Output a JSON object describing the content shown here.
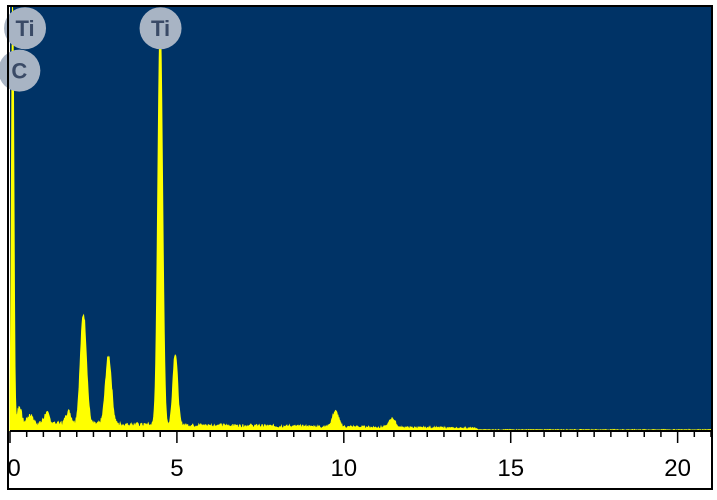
{
  "chart_data": {
    "type": "area",
    "title": "",
    "xlabel": "",
    "ylabel": "",
    "xlim": [
      0,
      21
    ],
    "ylim": [
      0,
      100
    ],
    "x_ticks": [
      "0",
      "5",
      "10",
      "15",
      "20"
    ],
    "grid": false,
    "colors": {
      "background": "#003366",
      "spectrum": "#ffff00",
      "frame": "#000000",
      "marker_fill": "#a8b4c4",
      "marker_text": "#3a4a66"
    },
    "peaks": [
      {
        "x": 0.08,
        "y": 100
      },
      {
        "x": 0.28,
        "y": 4
      },
      {
        "x": 0.6,
        "y": 2
      },
      {
        "x": 1.1,
        "y": 2.5
      },
      {
        "x": 1.75,
        "y": 3
      },
      {
        "x": 2.2,
        "y": 26
      },
      {
        "x": 2.95,
        "y": 16
      },
      {
        "x": 4.5,
        "y": 95
      },
      {
        "x": 4.95,
        "y": 17
      },
      {
        "x": 9.75,
        "y": 3.7
      },
      {
        "x": 11.45,
        "y": 2.2
      }
    ],
    "markers": [
      {
        "label": "Ti",
        "x": 0.45,
        "y": 95
      },
      {
        "label": "C",
        "x": 0.28,
        "y": 85
      },
      {
        "label": "Ti",
        "x": 4.51,
        "y": 95
      }
    ]
  }
}
